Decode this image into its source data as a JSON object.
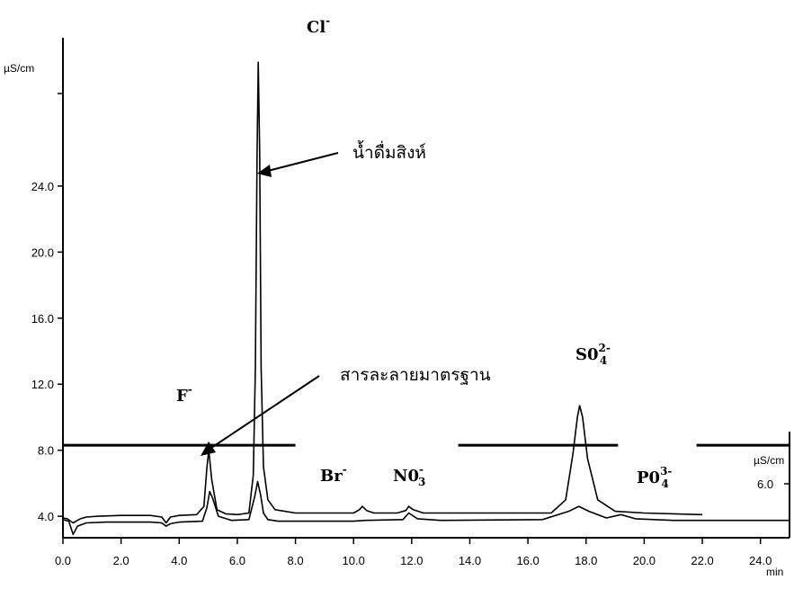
{
  "chart_data": {
    "type": "line",
    "y_unit": "µS/cm",
    "x_unit": "min",
    "right_axis_unit": "µS/cm",
    "right_axis_tick": "6.0",
    "xlim": [
      0,
      25
    ],
    "ylim": [
      2.7,
      32
    ],
    "x_ticks": [
      "0.0",
      "2.0",
      "4.0",
      "6.0",
      "8.0",
      "10.0",
      "12.0",
      "14.0",
      "16.0",
      "18.0",
      "20.0",
      "22.0",
      "24.0"
    ],
    "y_ticks": [
      "4.0",
      "8.0",
      "12.0",
      "16.0",
      "20.0",
      "24.0"
    ],
    "peak_labels": [
      {
        "ion": "Cl",
        "charge": "-",
        "sub": ""
      },
      {
        "ion": "F",
        "charge": "-",
        "sub": ""
      },
      {
        "ion": "Br",
        "charge": "-",
        "sub": ""
      },
      {
        "ion": "N0",
        "charge": "-",
        "sub": "3"
      },
      {
        "ion": "S0",
        "charge": "2-",
        "sub": "4"
      },
      {
        "ion": "P0",
        "charge": "3-",
        "sub": "4"
      }
    ],
    "annotations": [
      "น้ำดื่มสิงห์",
      "สารละลายมาตรฐาน"
    ],
    "series": [
      {
        "x": [
          0.0,
          0.15,
          0.35,
          0.45,
          0.6,
          0.8,
          1.2,
          2.0,
          3.0,
          3.4,
          3.55,
          3.7,
          4.0,
          4.6,
          4.85,
          4.95,
          5.02,
          5.12,
          5.3,
          5.6,
          6.0,
          6.4,
          6.55,
          6.62,
          6.68,
          6.72,
          6.77,
          6.82,
          6.9,
          7.05,
          7.3,
          8.0,
          10.0,
          10.2,
          10.3,
          10.45,
          10.7,
          11.5,
          11.8,
          11.9,
          12.05,
          12.4,
          16.8,
          17.3,
          17.55,
          17.7,
          17.78,
          17.88,
          18.05,
          18.4,
          19.0,
          20.0,
          22.0
        ],
        "y": [
          3.9,
          3.85,
          3.6,
          3.7,
          3.85,
          3.95,
          4.0,
          4.05,
          4.05,
          3.95,
          3.6,
          3.95,
          4.05,
          4.1,
          4.6,
          6.9,
          8.0,
          6.2,
          4.4,
          4.15,
          4.1,
          4.2,
          6.5,
          13.0,
          26.0,
          31.5,
          26.0,
          13.0,
          7.0,
          5.0,
          4.4,
          4.2,
          4.2,
          4.4,
          4.6,
          4.35,
          4.2,
          4.2,
          4.35,
          4.6,
          4.4,
          4.2,
          4.2,
          5.0,
          7.8,
          10.0,
          10.7,
          10.0,
          7.5,
          5.0,
          4.3,
          4.2,
          4.1
        ]
      },
      {
        "x": [
          0.0,
          0.2,
          0.35,
          0.5,
          0.8,
          1.5,
          3.0,
          3.4,
          3.55,
          3.7,
          4.0,
          4.8,
          4.95,
          5.05,
          5.15,
          5.35,
          5.8,
          6.4,
          6.6,
          6.7,
          6.8,
          6.9,
          7.05,
          7.4,
          10.0,
          10.4,
          11.7,
          11.9,
          12.2,
          13.0,
          16.5,
          17.4,
          17.75,
          18.1,
          18.7,
          19.2,
          19.7,
          21.0,
          25.0
        ],
        "y": [
          3.8,
          3.7,
          2.9,
          3.4,
          3.6,
          3.65,
          3.65,
          3.6,
          3.4,
          3.55,
          3.65,
          3.7,
          4.5,
          5.5,
          5.1,
          4.0,
          3.75,
          3.8,
          5.2,
          6.1,
          5.3,
          4.2,
          3.8,
          3.7,
          3.7,
          3.75,
          3.8,
          4.2,
          3.85,
          3.75,
          3.8,
          4.3,
          4.6,
          4.3,
          3.9,
          4.1,
          3.85,
          3.75,
          3.75
        ]
      }
    ],
    "baseline_segments": [
      [
        0.0,
        8.0
      ],
      [
        13.6,
        19.1
      ],
      [
        21.8,
        25.0
      ]
    ],
    "baseline_level": 8.3
  }
}
